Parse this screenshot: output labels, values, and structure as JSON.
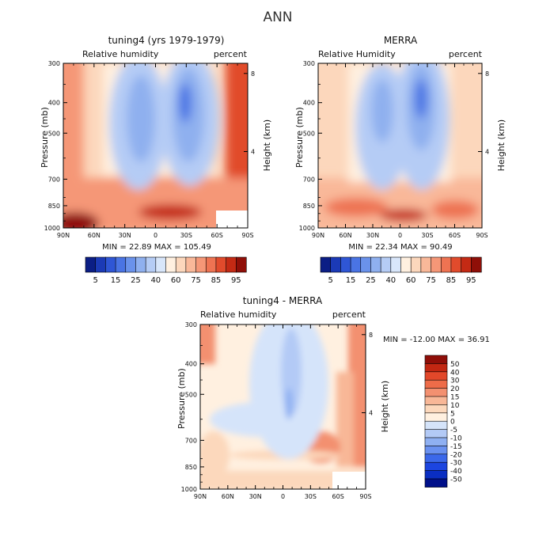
{
  "figure_title": "ANN",
  "colors": {
    "full_scale": [
      "#0b1e85",
      "#1b3ab6",
      "#2f56d5",
      "#4a74e4",
      "#6a92eb",
      "#8fb0ef",
      "#b5ccf5",
      "#d8e6fa",
      "#fff0e0",
      "#fcd7bc",
      "#f9b899",
      "#f59777",
      "#ee7352",
      "#e14b2c",
      "#c42a14",
      "#8f0f08"
    ],
    "diff_scale": [
      "#00108a",
      "#0a2ec2",
      "#1c45e0",
      "#3b68ea",
      "#6a91f0",
      "#8fb0f2",
      "#b3caf6",
      "#d5e4fa",
      "#fff0e0",
      "#fcd8bc",
      "#f8b797",
      "#f39070",
      "#ee6c49",
      "#e2482a",
      "#c22712",
      "#8f0e08"
    ]
  },
  "chart_data": [
    {
      "type": "heatmap",
      "panel": "tuning4",
      "title": "tuning4 (yrs 1979-1979)",
      "left_label": "Relative humidity",
      "right_label": "percent",
      "ylabel": "Pressure (mb)",
      "y2label": "Height (km)",
      "x_ticks": [
        "90N",
        "60N",
        "30N",
        "0",
        "30S",
        "60S",
        "90S"
      ],
      "y_ticks": [
        "300",
        "400",
        "500",
        "700",
        "850",
        "1000"
      ],
      "y2_ticks": [
        "8",
        "4"
      ],
      "min_label": "MIN = ",
      "min_value": "22.89",
      "max_label": "MAX = ",
      "max_value": "105.49",
      "stats_text": "MIN =   22.89   MAX = 105.49",
      "legend_levels": [
        "5",
        "15",
        "25",
        "40",
        "60",
        "75",
        "85",
        "95"
      ]
    },
    {
      "type": "heatmap",
      "panel": "MERRA",
      "title": "MERRA",
      "left_label": "Relative Humidity",
      "right_label": "percent",
      "ylabel": "Pressure (mb)",
      "y2label": "Height (km)",
      "x_ticks": [
        "90N",
        "60N",
        "30N",
        "0",
        "30S",
        "60S",
        "90S"
      ],
      "y_ticks": [
        "300",
        "400",
        "500",
        "700",
        "850",
        "1000"
      ],
      "y2_ticks": [
        "8",
        "4"
      ],
      "min_label": "MIN = ",
      "min_value": "22.34",
      "max_label": "MAX = ",
      "max_value": "90.49",
      "stats_text": "MIN =   22.34   MAX =   90.49",
      "legend_levels": [
        "5",
        "15",
        "25",
        "40",
        "60",
        "75",
        "85",
        "95"
      ]
    },
    {
      "type": "heatmap",
      "panel": "difference",
      "title": "tuning4 - MERRA",
      "left_label": "Relative humidity",
      "right_label": "percent",
      "ylabel": "Pressure (mb)",
      "y2label": "Height (km)",
      "x_ticks": [
        "90N",
        "60N",
        "30N",
        "0",
        "30S",
        "60S",
        "90S"
      ],
      "y_ticks": [
        "300",
        "400",
        "500",
        "700",
        "850",
        "1000"
      ],
      "y2_ticks": [
        "8",
        "4"
      ],
      "stats_text": "MIN = -12.00   MAX =  36.91",
      "legend_levels": [
        "50",
        "40",
        "30",
        "20",
        "15",
        "10",
        "5",
        "0",
        "-5",
        "-10",
        "-15",
        "-20",
        "-30",
        "-40",
        "-50"
      ]
    }
  ]
}
